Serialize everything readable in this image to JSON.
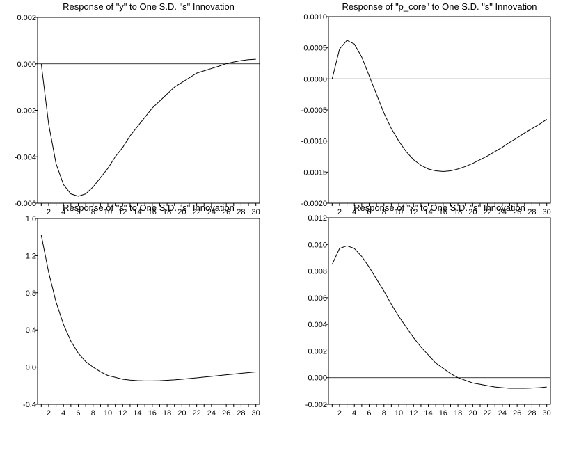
{
  "chart_data": [
    {
      "type": "line",
      "title": "Response of \"y\" to One S.D. \"s\" Innovation",
      "x": [
        1,
        2,
        3,
        4,
        5,
        6,
        7,
        8,
        9,
        10,
        11,
        12,
        13,
        14,
        15,
        16,
        17,
        18,
        19,
        20,
        21,
        22,
        23,
        24,
        25,
        26,
        27,
        28,
        29,
        30
      ],
      "series": [
        {
          "values": [
            0.0,
            -0.0026,
            -0.0043,
            -0.0052,
            -0.0056,
            -0.0057,
            -0.0056,
            -0.0053,
            -0.0049,
            -0.0045,
            -0.004,
            -0.0036,
            -0.0031,
            -0.0027,
            -0.0023,
            -0.0019,
            -0.0016,
            -0.0013,
            -0.001,
            -0.0008,
            -0.0006,
            -0.0004,
            -0.0003,
            -0.0002,
            -0.0001,
            1e-05,
            8e-05,
            0.00014,
            0.00018,
            0.0002
          ]
        }
      ],
      "ylim": [
        -0.006,
        0.002
      ],
      "yticks": [
        0.002,
        0.0,
        -0.002,
        -0.004,
        -0.006
      ],
      "yticklabels": [
        "0.002",
        "0.000",
        "-0.002",
        "-0.004",
        "-0.006"
      ],
      "xticks": [
        2,
        4,
        6,
        8,
        10,
        12,
        14,
        16,
        18,
        20,
        22,
        24,
        26,
        28,
        30
      ],
      "xticklabels": [
        "2",
        "4",
        "6",
        "8",
        "10",
        "12",
        "14",
        "16",
        "18",
        "20",
        "22",
        "24",
        "26",
        "28",
        "30"
      ],
      "zero_line": true
    },
    {
      "type": "line",
      "title": "Response of \"p_core\" to One S.D. \"s\" Innovation",
      "x": [
        1,
        2,
        3,
        4,
        5,
        6,
        7,
        8,
        9,
        10,
        11,
        12,
        13,
        14,
        15,
        16,
        17,
        18,
        19,
        20,
        21,
        22,
        23,
        24,
        25,
        26,
        27,
        28,
        29,
        30
      ],
      "series": [
        {
          "values": [
            0.0,
            0.00048,
            0.00062,
            0.00056,
            0.00035,
            5e-05,
            -0.00025,
            -0.00055,
            -0.0008,
            -0.001,
            -0.00117,
            -0.0013,
            -0.00139,
            -0.00145,
            -0.00148,
            -0.00149,
            -0.00148,
            -0.00145,
            -0.00141,
            -0.00136,
            -0.0013,
            -0.00124,
            -0.00117,
            -0.0011,
            -0.00102,
            -0.00095,
            -0.00087,
            -0.0008,
            -0.00073,
            -0.00065
          ]
        }
      ],
      "ylim": [
        -0.002,
        0.001
      ],
      "yticks": [
        0.001,
        0.0005,
        0.0,
        -0.0005,
        -0.001,
        -0.0015,
        -0.002
      ],
      "yticklabels": [
        "0.0010",
        "0.0005",
        "0.0000",
        "-0.0005",
        "-0.0010",
        "-0.0015",
        "-0.0020"
      ],
      "xticks": [
        2,
        4,
        6,
        8,
        10,
        12,
        14,
        16,
        18,
        20,
        22,
        24,
        26,
        28,
        30
      ],
      "xticklabels": [
        "2",
        "4",
        "6",
        "8",
        "10",
        "12",
        "14",
        "16",
        "18",
        "20",
        "22",
        "24",
        "26",
        "28",
        "30"
      ],
      "zero_line": true
    },
    {
      "type": "line",
      "title": "Response of \"s\" to One S.D. \"s\" Innovation",
      "x": [
        1,
        2,
        3,
        4,
        5,
        6,
        7,
        8,
        9,
        10,
        11,
        12,
        13,
        14,
        15,
        16,
        17,
        18,
        19,
        20,
        21,
        22,
        23,
        24,
        25,
        26,
        27,
        28,
        29,
        30
      ],
      "series": [
        {
          "values": [
            1.42,
            1.02,
            0.7,
            0.46,
            0.28,
            0.15,
            0.06,
            0.0,
            -0.05,
            -0.09,
            -0.11,
            -0.13,
            -0.14,
            -0.145,
            -0.148,
            -0.148,
            -0.146,
            -0.142,
            -0.137,
            -0.13,
            -0.123,
            -0.115,
            -0.107,
            -0.099,
            -0.091,
            -0.083,
            -0.075,
            -0.067,
            -0.059,
            -0.052
          ]
        }
      ],
      "ylim": [
        -0.4,
        1.6
      ],
      "yticks": [
        1.6,
        1.2,
        0.8,
        0.4,
        0.0,
        -0.4
      ],
      "yticklabels": [
        "1.6",
        "1.2",
        "0.8",
        "0.4",
        "0.0",
        "-0.4"
      ],
      "xticks": [
        2,
        4,
        6,
        8,
        10,
        12,
        14,
        16,
        18,
        20,
        22,
        24,
        26,
        28,
        30
      ],
      "xticklabels": [
        "2",
        "4",
        "6",
        "8",
        "10",
        "12",
        "14",
        "16",
        "18",
        "20",
        "22",
        "24",
        "26",
        "28",
        "30"
      ],
      "zero_line": true
    },
    {
      "type": "line",
      "title": "Response of \"x\" to One S.D. \"s\" Innovation",
      "x": [
        1,
        2,
        3,
        4,
        5,
        6,
        7,
        8,
        9,
        10,
        11,
        12,
        13,
        14,
        15,
        16,
        17,
        18,
        19,
        20,
        21,
        22,
        23,
        24,
        25,
        26,
        27,
        28,
        29,
        30
      ],
      "series": [
        {
          "values": [
            0.0085,
            0.0097,
            0.0099,
            0.0097,
            0.0091,
            0.0083,
            0.0074,
            0.0065,
            0.0055,
            0.0046,
            0.0038,
            0.003,
            0.0023,
            0.0017,
            0.0011,
            0.0007,
            0.0003,
            0.0,
            -0.0002,
            -0.0004,
            -0.0005,
            -0.0006,
            -0.0007,
            -0.00075,
            -0.0008,
            -0.0008,
            -0.0008,
            -0.00078,
            -0.00075,
            -0.0007
          ]
        }
      ],
      "ylim": [
        -0.002,
        0.012
      ],
      "yticks": [
        0.012,
        0.01,
        0.008,
        0.006,
        0.004,
        0.002,
        0.0,
        -0.002
      ],
      "yticklabels": [
        "0.012",
        "0.010",
        "0.008",
        "0.006",
        "0.004",
        "0.002",
        "0.000",
        "-0.002"
      ],
      "xticks": [
        2,
        4,
        6,
        8,
        10,
        12,
        14,
        16,
        18,
        20,
        22,
        24,
        26,
        28,
        30
      ],
      "xticklabels": [
        "2",
        "4",
        "6",
        "8",
        "10",
        "12",
        "14",
        "16",
        "18",
        "20",
        "22",
        "24",
        "26",
        "28",
        "30"
      ],
      "zero_line": true
    }
  ]
}
